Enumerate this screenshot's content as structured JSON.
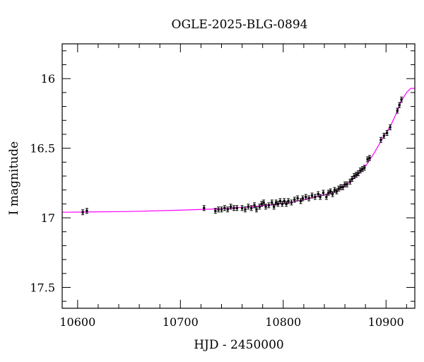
{
  "chart_data": {
    "type": "scatter",
    "title": "OGLE-2025-BLG-0894",
    "xlabel": "HJD - 2450000",
    "ylabel": "I magnitude",
    "xlim": [
      10585,
      10928
    ],
    "ylim": [
      17.65,
      15.75
    ],
    "y_inverted": true,
    "x_major_ticks": [
      10600,
      10700,
      10800,
      10900
    ],
    "x_tick_labels": [
      "10600",
      "10700",
      "10800",
      "10900"
    ],
    "x_minor_step": 20,
    "y_major_ticks": [
      16,
      16.5,
      17,
      17.5
    ],
    "y_tick_labels": [
      "16",
      "16.5",
      "17",
      "17.5"
    ],
    "y_minor_step": 0.1,
    "grid": false,
    "colors": {
      "model": "#ff00ff",
      "points": "#000000"
    },
    "series": [
      {
        "kind": "observations",
        "points": [
          [
            10605,
            16.96
          ],
          [
            10609,
            16.95
          ],
          [
            10723,
            16.93
          ],
          [
            10734,
            16.95
          ],
          [
            10737,
            16.94
          ],
          [
            10740,
            16.94
          ],
          [
            10743,
            16.93
          ],
          [
            10746,
            16.94
          ],
          [
            10749,
            16.92
          ],
          [
            10752,
            16.93
          ],
          [
            10755,
            16.93
          ],
          [
            10760,
            16.93
          ],
          [
            10763,
            16.94
          ],
          [
            10766,
            16.92
          ],
          [
            10769,
            16.93
          ],
          [
            10772,
            16.91
          ],
          [
            10774,
            16.94
          ],
          [
            10777,
            16.92
          ],
          [
            10779,
            16.9
          ],
          [
            10781,
            16.89
          ],
          [
            10783,
            16.92
          ],
          [
            10786,
            16.91
          ],
          [
            10789,
            16.89
          ],
          [
            10791,
            16.92
          ],
          [
            10793,
            16.89
          ],
          [
            10795,
            16.9
          ],
          [
            10797,
            16.88
          ],
          [
            10799,
            16.9
          ],
          [
            10801,
            16.88
          ],
          [
            10803,
            16.9
          ],
          [
            10805,
            16.88
          ],
          [
            10808,
            16.89
          ],
          [
            10811,
            16.87
          ],
          [
            10814,
            16.86
          ],
          [
            10817,
            16.88
          ],
          [
            10819,
            16.86
          ],
          [
            10822,
            16.85
          ],
          [
            10825,
            16.86
          ],
          [
            10828,
            16.84
          ],
          [
            10831,
            16.85
          ],
          [
            10834,
            16.83
          ],
          [
            10836,
            16.85
          ],
          [
            10839,
            16.82
          ],
          [
            10842,
            16.85
          ],
          [
            10844,
            16.82
          ],
          [
            10846,
            16.81
          ],
          [
            10848,
            16.83
          ],
          [
            10850,
            16.8
          ],
          [
            10852,
            16.81
          ],
          [
            10854,
            16.79
          ],
          [
            10856,
            16.78
          ],
          [
            10858,
            16.78
          ],
          [
            10860,
            16.76
          ],
          [
            10862,
            16.76
          ],
          [
            10865,
            16.74
          ],
          [
            10867,
            16.72
          ],
          [
            10869,
            16.7
          ],
          [
            10871,
            16.69
          ],
          [
            10873,
            16.68
          ],
          [
            10875,
            16.66
          ],
          [
            10877,
            16.65
          ],
          [
            10879,
            16.64
          ],
          [
            10882,
            16.58
          ],
          [
            10884,
            16.57
          ],
          [
            10895,
            16.44
          ],
          [
            10898,
            16.41
          ],
          [
            10901,
            16.39
          ],
          [
            10904,
            16.35
          ],
          [
            10911,
            16.23
          ],
          [
            10913,
            16.19
          ],
          [
            10915,
            16.15
          ]
        ]
      },
      {
        "kind": "model",
        "points": [
          [
            10585,
            16.96
          ],
          [
            10650,
            16.955
          ],
          [
            10700,
            16.945
          ],
          [
            10740,
            16.935
          ],
          [
            10770,
            16.92
          ],
          [
            10790,
            16.905
          ],
          [
            10810,
            16.885
          ],
          [
            10825,
            16.86
          ],
          [
            10840,
            16.835
          ],
          [
            10850,
            16.81
          ],
          [
            10860,
            16.77
          ],
          [
            10870,
            16.71
          ],
          [
            10880,
            16.63
          ],
          [
            10888,
            16.54
          ],
          [
            10895,
            16.45
          ],
          [
            10900,
            16.39
          ],
          [
            10905,
            16.33
          ],
          [
            10910,
            16.25
          ],
          [
            10915,
            16.16
          ],
          [
            10920,
            16.1
          ],
          [
            10924,
            16.07
          ],
          [
            10928,
            16.07
          ]
        ]
      }
    ]
  }
}
